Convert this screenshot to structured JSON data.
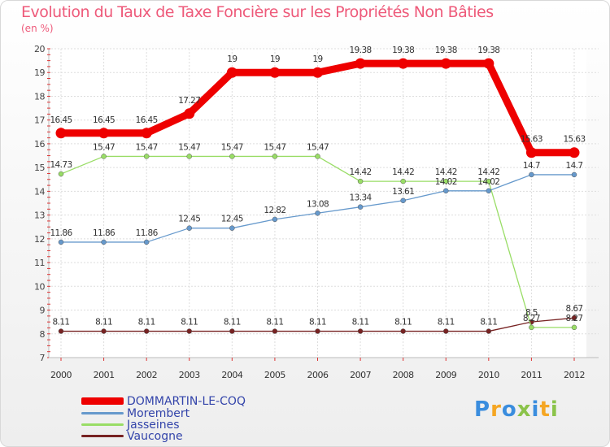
{
  "title": "Evolution du Taux de Taxe Foncière sur les Propriétés Non Bâties",
  "unit_label": "(en %)",
  "brand_text": "Proxiti",
  "chart_data": {
    "type": "line",
    "title": "Evolution du Taux de Taxe Foncière sur les Propriétés Non Bâties",
    "ylabel": "(en %)",
    "xlabel": "",
    "ylim": [
      7,
      20
    ],
    "yticks": [
      7,
      8,
      9,
      10,
      11,
      12,
      13,
      14,
      15,
      16,
      17,
      18,
      19,
      20
    ],
    "x": [
      "2000",
      "2001",
      "2002",
      "2003",
      "2004",
      "2005",
      "2006",
      "2007",
      "2008",
      "2009",
      "2010",
      "2011",
      "2012"
    ],
    "legend_position": "bottom-left",
    "series": [
      {
        "name": "DOMMARTIN-LE-COQ",
        "color": "#ee0000",
        "values": [
          16.45,
          16.45,
          16.45,
          17.27,
          19,
          19,
          19,
          19.38,
          19.38,
          19.38,
          19.38,
          15.63,
          15.63
        ],
        "labels": [
          "16.45",
          "16.45",
          "16.45",
          "17.27",
          "19",
          "19",
          "19",
          "19.38",
          "19.38",
          "19.38",
          "19.38",
          "15.63",
          "15.63"
        ]
      },
      {
        "name": "Morembert",
        "color": "#6699cc",
        "values": [
          11.86,
          11.86,
          11.86,
          12.45,
          12.45,
          12.82,
          13.08,
          13.34,
          13.61,
          14.02,
          14.02,
          14.7,
          14.7
        ],
        "labels": [
          "11.86",
          "11.86",
          "11.86",
          "12.45",
          "12.45",
          "12.82",
          "13.08",
          "13.34",
          "13.61",
          "14.02",
          "14.02",
          "14.7",
          "14.7"
        ]
      },
      {
        "name": "Jasseines",
        "color": "#99dd66",
        "values": [
          14.73,
          15.47,
          15.47,
          15.47,
          15.47,
          15.47,
          15.47,
          14.42,
          14.42,
          14.42,
          14.42,
          8.27,
          8.27
        ],
        "labels": [
          "14.73",
          "15.47",
          "15.47",
          "15.47",
          "15.47",
          "15.47",
          "15.47",
          "14.42",
          "14.42",
          "14.42",
          "14.42",
          "8.27",
          "8.27"
        ]
      },
      {
        "name": "Vaucogne",
        "color": "#772222",
        "values": [
          8.11,
          8.11,
          8.11,
          8.11,
          8.11,
          8.11,
          8.11,
          8.11,
          8.11,
          8.11,
          8.11,
          8.5,
          8.67
        ],
        "labels": [
          "8.11",
          "8.11",
          "8.11",
          "8.11",
          "8.11",
          "8.11",
          "8.11",
          "8.11",
          "8.11",
          "8.11",
          "8.11",
          "8.5",
          "8.67"
        ]
      }
    ]
  }
}
